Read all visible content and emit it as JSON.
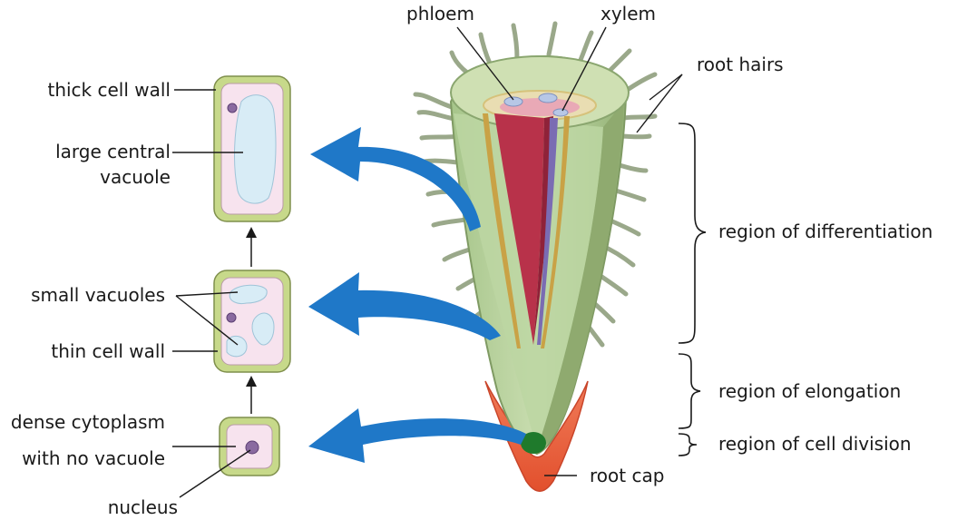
{
  "labels": {
    "phloem": "phloem",
    "xylem": "xylem",
    "root_hairs": "root hairs",
    "thick_cell_wall": "thick cell wall",
    "large_central_vacuole_1": "large central",
    "large_central_vacuole_2": "vacuole",
    "small_vacuoles": "small vacuoles",
    "thin_cell_wall": "thin cell wall",
    "dense_cytoplasm_1": "dense cytoplasm",
    "dense_cytoplasm_2": "with no vacuole",
    "nucleus": "nucleus",
    "region_differentiation": "region of differentiation",
    "region_elongation": "region of elongation",
    "region_cell_division": "region of cell division",
    "root_cap": "root cap"
  },
  "colors": {
    "arrow_blue": "#1f78c8",
    "cortex_green": "#b9d39b",
    "stele_red": "#b8324a",
    "cap_orange": "#e8623a",
    "cell_wall": "#c7d98a",
    "cytoplasm": "#f7e3ee",
    "vacuole": "#d8ecf6"
  }
}
